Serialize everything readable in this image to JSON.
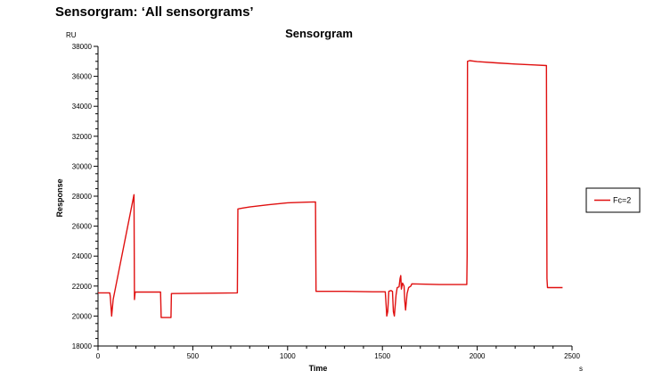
{
  "page": {
    "heading": "Sensorgram: ‘All sensorgrams’"
  },
  "colors": {
    "series": "#e01010",
    "axis": "#000000",
    "background": "#ffffff"
  },
  "chart_data": {
    "type": "line",
    "title": "Sensorgram",
    "xlabel": "Time",
    "ylabel": "Response",
    "x_unit": "s",
    "y_unit": "RU",
    "xlim": [
      0,
      2500
    ],
    "ylim": [
      18000,
      38000
    ],
    "xticks": [
      0,
      500,
      1000,
      1500,
      2000,
      2500
    ],
    "yticks": [
      18000,
      20000,
      22000,
      24000,
      26000,
      28000,
      30000,
      32000,
      34000,
      36000,
      38000
    ],
    "x_minor_step": 100,
    "y_minor_step": 500,
    "grid": false,
    "legend_position": "right",
    "series": [
      {
        "name": "Fc=2",
        "color": "#e01010",
        "points": [
          [
            0,
            21550
          ],
          [
            62,
            21550
          ],
          [
            65,
            21300
          ],
          [
            72,
            20000
          ],
          [
            80,
            21100
          ],
          [
            190,
            28100
          ],
          [
            192,
            21100
          ],
          [
            196,
            21600
          ],
          [
            330,
            21600
          ],
          [
            333,
            19900
          ],
          [
            385,
            19900
          ],
          [
            387,
            21500
          ],
          [
            735,
            21550
          ],
          [
            738,
            27150
          ],
          [
            760,
            27200
          ],
          [
            800,
            27280
          ],
          [
            900,
            27430
          ],
          [
            1000,
            27560
          ],
          [
            1100,
            27600
          ],
          [
            1147,
            27620
          ],
          [
            1150,
            21650
          ],
          [
            1300,
            21650
          ],
          [
            1450,
            21620
          ],
          [
            1515,
            21620
          ],
          [
            1518,
            21100
          ],
          [
            1523,
            20000
          ],
          [
            1528,
            20300
          ],
          [
            1534,
            21650
          ],
          [
            1545,
            21700
          ],
          [
            1553,
            21650
          ],
          [
            1558,
            20300
          ],
          [
            1563,
            20000
          ],
          [
            1572,
            21400
          ],
          [
            1578,
            21900
          ],
          [
            1588,
            21950
          ],
          [
            1593,
            22500
          ],
          [
            1597,
            22700
          ],
          [
            1600,
            21800
          ],
          [
            1606,
            22200
          ],
          [
            1614,
            22000
          ],
          [
            1618,
            21000
          ],
          [
            1622,
            20400
          ],
          [
            1630,
            21500
          ],
          [
            1638,
            21900
          ],
          [
            1650,
            22000
          ],
          [
            1655,
            22150
          ],
          [
            1800,
            22100
          ],
          [
            1945,
            22100
          ],
          [
            1947,
            24000
          ],
          [
            1949,
            37000
          ],
          [
            1960,
            37050
          ],
          [
            2000,
            36980
          ],
          [
            2100,
            36900
          ],
          [
            2200,
            36820
          ],
          [
            2300,
            36760
          ],
          [
            2365,
            36720
          ],
          [
            2368,
            22500
          ],
          [
            2371,
            21900
          ],
          [
            2450,
            21900
          ]
        ]
      }
    ]
  }
}
